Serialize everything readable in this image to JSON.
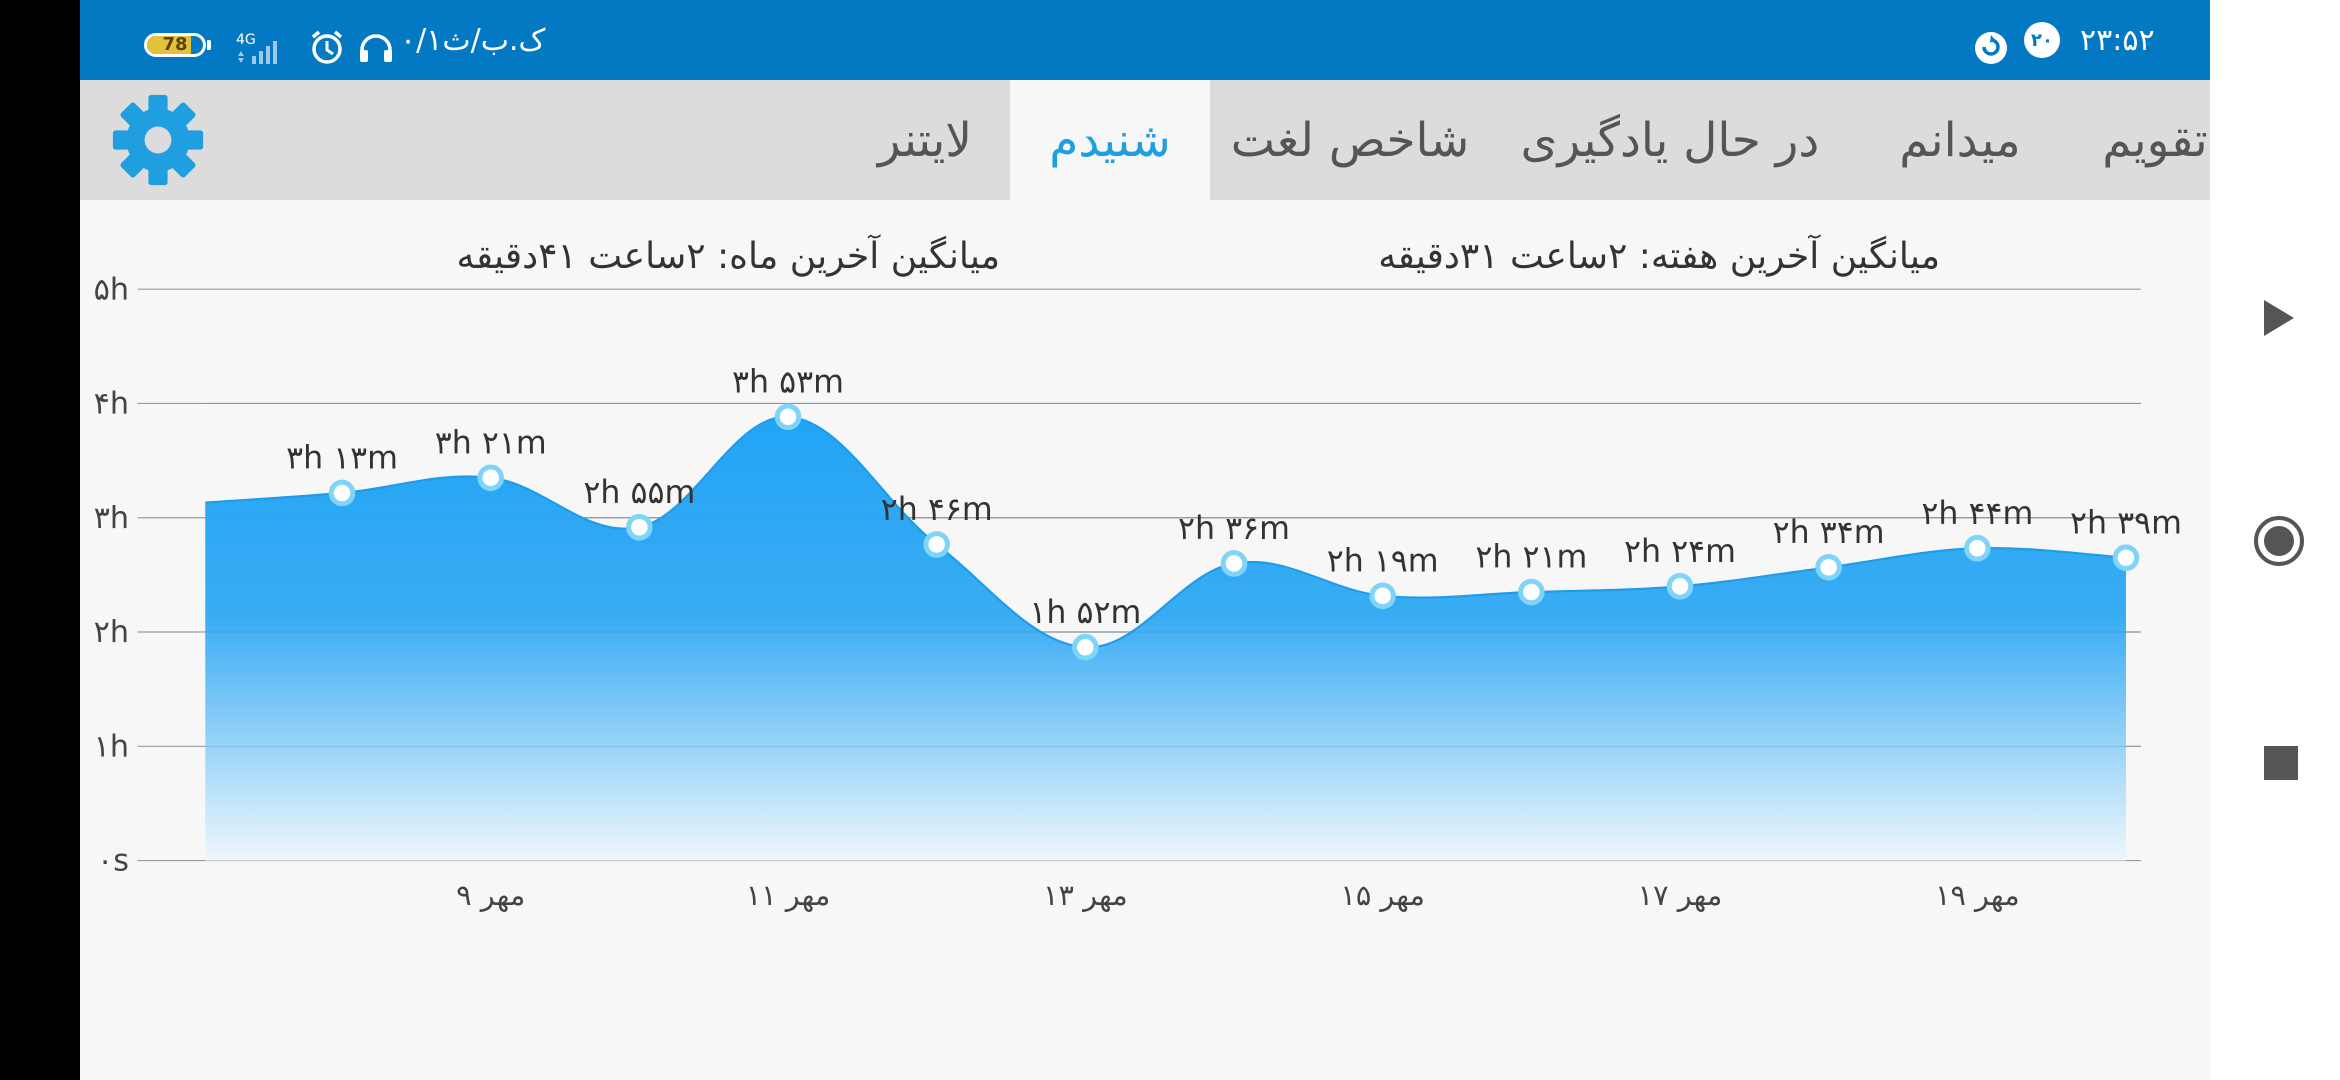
{
  "status_bar": {
    "battery": "78",
    "battery_level": 0.78,
    "network": "4G",
    "speed": "۰/۱ک.ب/ث",
    "icons": [
      "battery-icon",
      "signal-icon",
      "alarm-icon",
      "headphones-icon",
      "notification-badge-icon",
      "sync-icon"
    ],
    "notification_count": "۲۰",
    "time": "۲۳:۵۲"
  },
  "tabs": [
    {
      "label": "تقویم",
      "active": false
    },
    {
      "label": "میدانم",
      "active": false
    },
    {
      "label": "در حال یادگیری",
      "active": false
    },
    {
      "label": "شاخص لغت",
      "active": false
    },
    {
      "label": "شنیدم",
      "active": true
    },
    {
      "label": "لایتنر",
      "active": false
    }
  ],
  "settings_icon": "gear-icon",
  "averages": {
    "week": "میانگین آخرین هفته: ۲ساعت  ۳۱دقیقه",
    "month": "میانگین آخرین ماه: ۲ساعت  ۴۱دقیقه"
  },
  "colors": {
    "accent": "#1f9ee0",
    "status_bar": "#0379c4",
    "fill_top": "#22a4f5",
    "fill_bottom": "#e9f5fd"
  },
  "chart_data": {
    "type": "area",
    "y_unit": "minutes",
    "ylim": [
      0,
      300
    ],
    "y_ticks": [
      {
        "value": 0,
        "label": "۰s"
      },
      {
        "value": 60,
        "label": "۱h"
      },
      {
        "value": 120,
        "label": "۲h"
      },
      {
        "value": 180,
        "label": "۳h"
      },
      {
        "value": 240,
        "label": "۴h"
      },
      {
        "value": 300,
        "label": "۵h"
      }
    ],
    "x_ticks": [
      {
        "day": 9,
        "label": "۹ مهر"
      },
      {
        "day": 11,
        "label": "۱۱ مهر"
      },
      {
        "day": 13,
        "label": "۱۳ مهر"
      },
      {
        "day": 15,
        "label": "۱۵ مهر"
      },
      {
        "day": 17,
        "label": "۱۷ مهر"
      },
      {
        "day": 19,
        "label": "۱۹ مهر"
      }
    ],
    "x_range": [
      7.08,
      20.1
    ],
    "start_value": 188,
    "points": [
      {
        "day": 8,
        "minutes": 193,
        "label": "۳h ۱۳m"
      },
      {
        "day": 9,
        "minutes": 201,
        "label": "۳h ۲۱m"
      },
      {
        "day": 10,
        "minutes": 175,
        "label": "۲h ۵۵m"
      },
      {
        "day": 11,
        "minutes": 233,
        "label": "۳h ۵۳m"
      },
      {
        "day": 12,
        "minutes": 166,
        "label": "۲h ۴۶m"
      },
      {
        "day": 13,
        "minutes": 112,
        "label": "۱h ۵۲m"
      },
      {
        "day": 14,
        "minutes": 156,
        "label": "۲h ۳۶m"
      },
      {
        "day": 15,
        "minutes": 139,
        "label": "۲h ۱۹m"
      },
      {
        "day": 16,
        "minutes": 141,
        "label": "۲h ۲۱m"
      },
      {
        "day": 17,
        "minutes": 144,
        "label": "۲h ۲۴m"
      },
      {
        "day": 18,
        "minutes": 154,
        "label": "۲h ۳۴m"
      },
      {
        "day": 19,
        "minutes": 164,
        "label": "۲h ۴۴m"
      },
      {
        "day": 20,
        "minutes": 159,
        "label": "۲h ۳۹m"
      }
    ]
  }
}
